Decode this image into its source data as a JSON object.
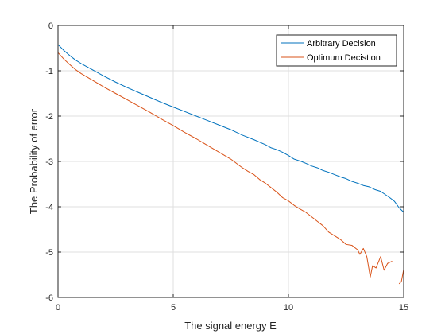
{
  "chart_data": {
    "type": "line",
    "title": "",
    "xlabel": "The signal energy E",
    "ylabel": "The Probability of error",
    "xlim": [
      0,
      15
    ],
    "ylim": [
      -6,
      0
    ],
    "xticks": [
      0,
      5,
      10,
      15
    ],
    "yticks": [
      0,
      -1,
      -2,
      -3,
      -4,
      -5,
      -6
    ],
    "xtick_labels": [
      "0",
      "5",
      "10",
      "15"
    ],
    "ytick_labels": [
      "0",
      "-1",
      "-2",
      "-3",
      "-4",
      "-5",
      "-6"
    ],
    "grid": true,
    "legend_position": "top-right",
    "series": [
      {
        "name": "Arbitrary Decision",
        "color": "#0072bd",
        "x": [
          0,
          0.25,
          0.5,
          0.75,
          1,
          1.5,
          2,
          2.5,
          3,
          3.5,
          4,
          4.5,
          5,
          5.5,
          6,
          6.5,
          7,
          7.5,
          8,
          8.5,
          9,
          9.25,
          9.5,
          9.75,
          10,
          10.25,
          10.5,
          10.75,
          11,
          11.25,
          11.5,
          11.75,
          12,
          12.25,
          12.5,
          12.75,
          13,
          13.25,
          13.5,
          13.75,
          14,
          14.2,
          14.4,
          14.6,
          14.8,
          15
        ],
        "y": [
          -0.42,
          -0.55,
          -0.66,
          -0.76,
          -0.84,
          -0.98,
          -1.12,
          -1.25,
          -1.37,
          -1.48,
          -1.59,
          -1.7,
          -1.8,
          -1.9,
          -2.0,
          -2.1,
          -2.2,
          -2.3,
          -2.42,
          -2.52,
          -2.63,
          -2.7,
          -2.74,
          -2.8,
          -2.87,
          -2.95,
          -2.99,
          -3.04,
          -3.1,
          -3.14,
          -3.2,
          -3.24,
          -3.29,
          -3.34,
          -3.38,
          -3.44,
          -3.48,
          -3.53,
          -3.56,
          -3.62,
          -3.66,
          -3.73,
          -3.8,
          -3.88,
          -4.02,
          -4.12
        ]
      },
      {
        "name": "Optimum Decistion",
        "color": "#d95319",
        "x": [
          0,
          0.25,
          0.5,
          0.75,
          1,
          1.5,
          2,
          2.5,
          3,
          3.5,
          4,
          4.5,
          5,
          5.5,
          6,
          6.5,
          7,
          7.5,
          8,
          8.25,
          8.5,
          8.75,
          9,
          9.25,
          9.5,
          9.75,
          10,
          10.25,
          10.5,
          10.75,
          11,
          11.25,
          11.5,
          11.75,
          12,
          12.25,
          12.5,
          12.75,
          13,
          13.1,
          13.25,
          13.4,
          13.55,
          13.65,
          13.8,
          14,
          14.15,
          14.3,
          14.5
        ],
        "y": [
          -0.6,
          -0.74,
          -0.86,
          -0.97,
          -1.06,
          -1.21,
          -1.36,
          -1.5,
          -1.64,
          -1.78,
          -1.92,
          -2.07,
          -2.21,
          -2.36,
          -2.5,
          -2.65,
          -2.8,
          -2.95,
          -3.14,
          -3.22,
          -3.29,
          -3.4,
          -3.48,
          -3.58,
          -3.68,
          -3.8,
          -3.87,
          -3.97,
          -4.05,
          -4.12,
          -4.22,
          -4.32,
          -4.42,
          -4.56,
          -4.64,
          -4.72,
          -4.83,
          -4.85,
          -4.95,
          -5.05,
          -4.92,
          -5.1,
          -5.55,
          -5.3,
          -5.35,
          -5.1,
          -5.4,
          -5.25,
          -5.2
        ]
      },
      {
        "name": "",
        "color": "#d95319",
        "x": [
          14.8,
          14.9,
          15
        ],
        "y": [
          -5.7,
          -5.65,
          -5.38
        ]
      }
    ]
  }
}
